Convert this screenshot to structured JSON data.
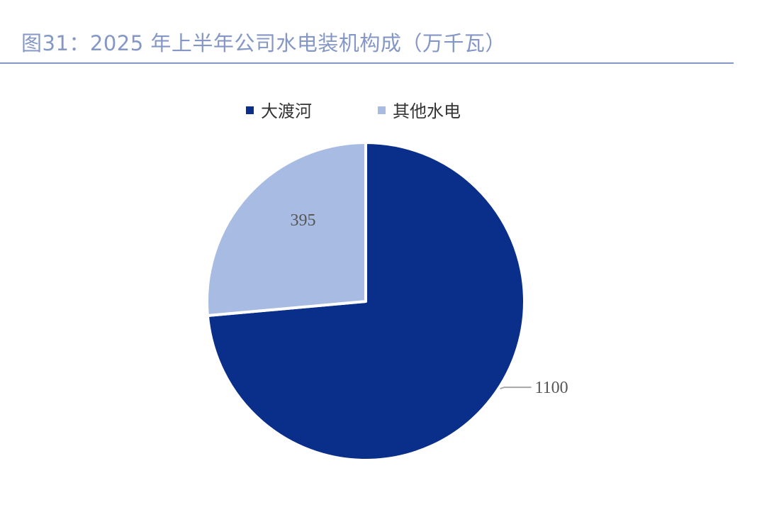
{
  "title": "图31：2025 年上半年公司水电装机构成（万千瓦）",
  "colors": {
    "title": "#8497c6",
    "rule": "#8497c6"
  },
  "chart_data": {
    "type": "pie",
    "title": "图31：2025 年上半年公司水电装机构成（万千瓦）",
    "unit": "万千瓦",
    "legend_position": "top",
    "slices": [
      {
        "name": "大渡河",
        "value": 1100,
        "label": "1100",
        "color": "#0a2f8a"
      },
      {
        "name": "其他水电",
        "value": 395,
        "label": "395",
        "color": "#a8bbe3"
      }
    ]
  }
}
